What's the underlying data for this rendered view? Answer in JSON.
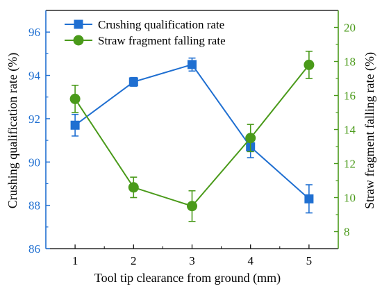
{
  "chart_data": {
    "type": "line",
    "x": [
      1,
      2,
      3,
      4,
      5
    ],
    "xlabel": "Tool tip clearance from ground (mm)",
    "xticks": [
      "1",
      "2",
      "3",
      "4",
      "5"
    ],
    "xlim": [
      0.5,
      5.5
    ],
    "left_axis": {
      "label": "Crushing qualification rate (%)",
      "ylim": [
        86,
        97
      ],
      "ticks": [
        86,
        88,
        90,
        92,
        94,
        96
      ],
      "color": "#1f6fd1"
    },
    "right_axis": {
      "label": "Straw fragment falling rate (%)",
      "ylim": [
        7,
        21
      ],
      "ticks": [
        8,
        10,
        12,
        14,
        16,
        18,
        20
      ],
      "color": "#4a9a1a"
    },
    "series": [
      {
        "name": "Crushing qualification rate",
        "axis": "left",
        "marker": "square",
        "color": "#1f6fd1",
        "values": [
          91.7,
          93.7,
          94.5,
          90.7,
          88.3
        ],
        "errors": [
          0.5,
          0.2,
          0.3,
          0.5,
          0.65
        ]
      },
      {
        "name": "Straw fragment falling rate",
        "axis": "right",
        "marker": "circle",
        "color": "#4a9a1a",
        "values": [
          15.8,
          10.6,
          9.5,
          13.5,
          17.8
        ],
        "errors": [
          0.8,
          0.6,
          0.9,
          0.8,
          0.8
        ]
      }
    ],
    "legend_position": "top-left",
    "grid": false
  }
}
